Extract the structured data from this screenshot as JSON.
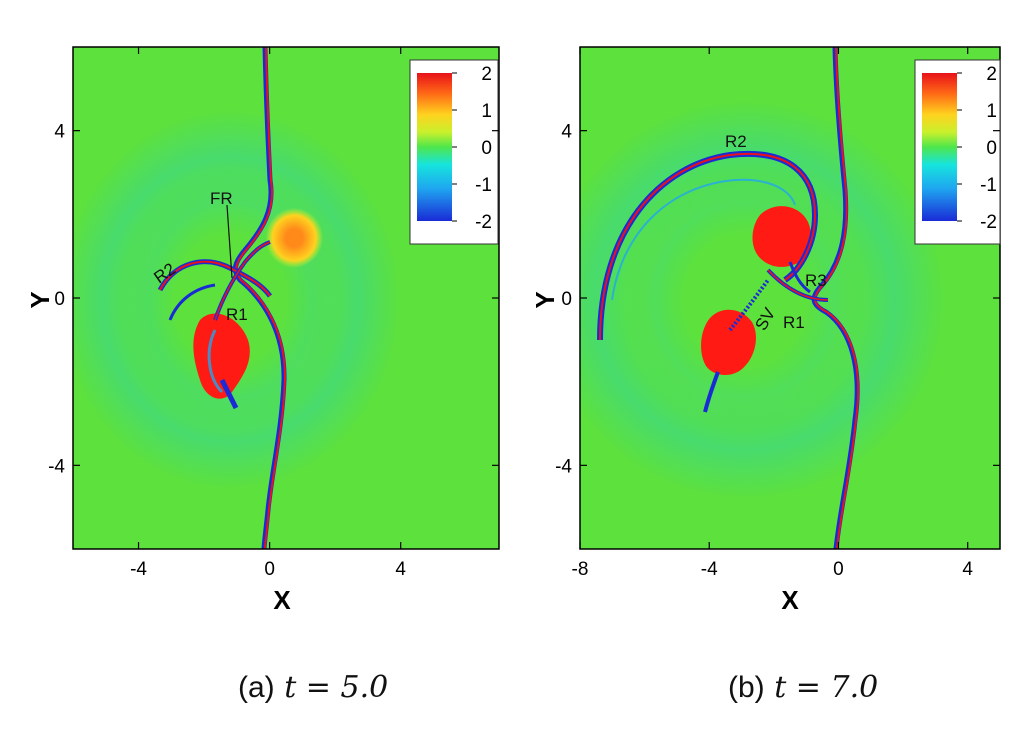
{
  "figure": {
    "panels": [
      {
        "id": "a",
        "caption_label": "(a)",
        "caption_math": "t = 5.0",
        "xlabel": "X",
        "ylabel": "Y",
        "annotations": [
          "FR",
          "R2",
          "R1"
        ]
      },
      {
        "id": "b",
        "caption_label": "(b)",
        "caption_math": "t = 7.0",
        "xlabel": "X",
        "ylabel": "Y",
        "annotations": [
          "R2",
          "R3",
          "SV",
          "R1"
        ]
      }
    ]
  },
  "chart_data": [
    {
      "type": "heatmap",
      "title": "",
      "xlabel": "X",
      "ylabel": "Y",
      "xlim": [
        -6,
        7
      ],
      "ylim": [
        -6,
        6
      ],
      "xticks": [
        "-4",
        "0",
        "4"
      ],
      "yticks": [
        "4",
        "0",
        "-4"
      ],
      "colorbar": {
        "ticks": [
          "2",
          "1",
          "0",
          "-1",
          "-2"
        ],
        "range": [
          -2,
          2
        ],
        "colors": [
          "#1a2bd6",
          "#1fa6f0",
          "#16e4de",
          "#4fe64c",
          "#c9f02c",
          "#ffd21f",
          "#ff6a16",
          "#e8111a"
        ]
      },
      "background_color": "#5de13d",
      "annotations": [
        "FR",
        "R2",
        "R1"
      ]
    },
    {
      "type": "heatmap",
      "title": "",
      "xlabel": "X",
      "ylabel": "Y",
      "xlim": [
        -8,
        5
      ],
      "ylim": [
        -6,
        6
      ],
      "xticks": [
        "-8",
        "-4",
        "0",
        "4"
      ],
      "yticks": [
        "4",
        "0",
        "-4"
      ],
      "colorbar": {
        "ticks": [
          "2",
          "1",
          "0",
          "-1",
          "-2"
        ],
        "range": [
          -2,
          2
        ],
        "colors": [
          "#1a2bd6",
          "#1fa6f0",
          "#16e4de",
          "#4fe64c",
          "#c9f02c",
          "#ffd21f",
          "#ff6a16",
          "#e8111a"
        ]
      },
      "background_color": "#5de13d",
      "annotations": [
        "R2",
        "R3",
        "SV",
        "R1"
      ]
    }
  ]
}
